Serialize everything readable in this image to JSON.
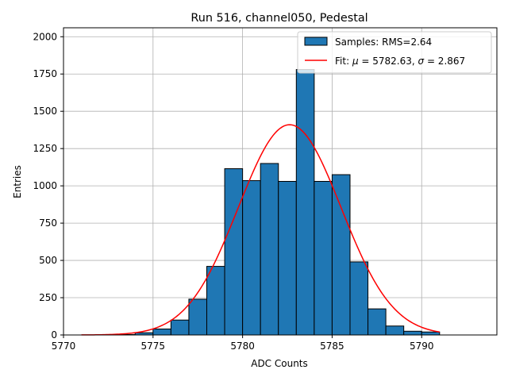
{
  "chart_data": {
    "type": "bar",
    "title": "Run 516, channel050, Pedestal",
    "xlabel": "ADC Counts",
    "ylabel": "Entries",
    "xlim": [
      5770,
      5794.2
    ],
    "ylim": [
      0,
      2060
    ],
    "xticks": [
      5770,
      5775,
      5780,
      5785,
      5790
    ],
    "yticks": [
      0,
      250,
      500,
      750,
      1000,
      1250,
      1500,
      1750,
      2000
    ],
    "grid": true,
    "legend_position": "top-right",
    "histogram": {
      "name": "Samples: RMS=2.64",
      "color": "#1f77b4",
      "edge_color": "#000000",
      "bin_edges": [
        5771,
        5772,
        5773,
        5774,
        5775,
        5776,
        5777,
        5778,
        5779,
        5780,
        5781,
        5782,
        5783,
        5784,
        5785,
        5786,
        5787,
        5788,
        5789,
        5790,
        5791
      ],
      "counts": [
        0,
        0,
        3,
        15,
        40,
        100,
        240,
        460,
        1115,
        1035,
        1150,
        1030,
        1780,
        1030,
        1075,
        490,
        175,
        60,
        25,
        20
      ]
    },
    "fit": {
      "name_prefix": "Fit: ",
      "name_mu": "μ",
      "name_mu_value": " = 5782.63, ",
      "name_sigma": "σ",
      "name_sigma_value": " = 2.867",
      "color": "#ff0000",
      "mu": 5782.63,
      "sigma": 2.867,
      "amplitude": 1410,
      "x_range": [
        5771,
        5791
      ]
    }
  }
}
